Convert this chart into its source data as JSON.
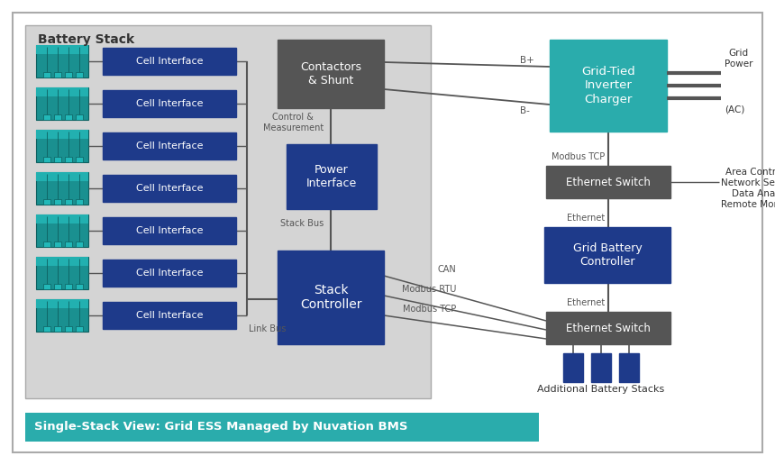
{
  "bg_white": "#ffffff",
  "bg_light_gray": "#e8e8e8",
  "color_blue_dark": "#1e3a8a",
  "color_teal": "#2aacac",
  "color_gray_dark": "#555555",
  "color_gray_med": "#777777",
  "color_black": "#333333",
  "color_white": "#ffffff",
  "color_teal_banner": "#2aacac",
  "color_border": "#aaaaaa",
  "title_banner": "Single-Stack View: Grid ESS Managed by Nuvation BMS",
  "battery_stack_label": "Battery Stack",
  "contactors_label": "Contactors\n& Shunt",
  "power_interface_label": "Power\nInterface",
  "stack_controller_label": "Stack\nController",
  "grid_tied_label": "Grid-Tied\nInverter\nCharger",
  "ethernet_switch1_label": "Ethernet Switch",
  "grid_battery_label": "Grid Battery\nController",
  "ethernet_switch2_label": "Ethernet Switch",
  "additional_battery_label": "Additional Battery Stacks",
  "figw": 8.6,
  "figh": 5.16,
  "dpi": 100
}
